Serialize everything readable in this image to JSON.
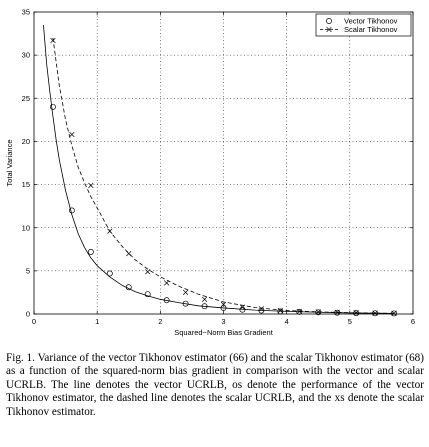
{
  "chart_data": {
    "type": "line",
    "title": "",
    "xlabel": "Squared−Norm Bias Gradient",
    "ylabel": "Total Variance",
    "xlim": [
      0,
      6
    ],
    "ylim": [
      0,
      35
    ],
    "xticks": [
      "0",
      "1",
      "2",
      "3",
      "4",
      "5",
      "6"
    ],
    "yticks": [
      "0",
      "5",
      "10",
      "15",
      "20",
      "25",
      "30",
      "35"
    ],
    "grid": "dotted",
    "legend_position": "top-right",
    "series": [
      {
        "name": "Vector Tikhonov",
        "marker": "circle",
        "line": "solid",
        "curve_x": [
          0.15,
          0.2,
          0.25,
          0.3,
          0.35,
          0.4,
          0.5,
          0.6,
          0.7,
          0.8,
          0.9,
          1.0,
          1.2,
          1.4,
          1.6,
          1.8,
          2.0,
          2.3,
          2.6,
          3.0,
          3.5,
          4.0,
          4.5,
          5.0,
          5.5,
          5.7
        ],
        "curve_y": [
          33.5,
          29.0,
          25.8,
          22.9,
          20.2,
          17.9,
          14.3,
          11.5,
          9.3,
          7.7,
          6.5,
          5.6,
          4.3,
          3.3,
          2.6,
          2.1,
          1.7,
          1.3,
          0.95,
          0.7,
          0.45,
          0.3,
          0.2,
          0.12,
          0.08,
          0.07
        ],
        "marker_x": [
          0.3,
          0.6,
          0.9,
          1.2,
          1.5,
          1.8,
          2.1,
          2.4,
          2.7,
          3.0,
          3.3,
          3.6,
          3.9,
          4.2,
          4.5,
          4.8,
          5.1,
          5.4,
          5.7
        ],
        "marker_y": [
          24.0,
          12.0,
          7.2,
          4.7,
          3.1,
          2.3,
          1.6,
          1.2,
          0.9,
          0.7,
          0.5,
          0.4,
          0.3,
          0.25,
          0.2,
          0.15,
          0.1,
          0.08,
          0.07
        ]
      },
      {
        "name": "Scalar Tikhonov",
        "marker": "x",
        "line": "dashed",
        "curve_x": [
          0.3,
          0.4,
          0.5,
          0.6,
          0.7,
          0.8,
          0.9,
          1.0,
          1.2,
          1.4,
          1.6,
          1.8,
          2.0,
          2.3,
          2.6,
          3.0,
          3.5,
          4.0,
          4.5,
          5.0,
          5.5,
          5.7
        ],
        "curve_y": [
          32.0,
          26.5,
          22.5,
          19.5,
          17.0,
          15.2,
          13.6,
          12.3,
          9.6,
          7.8,
          6.3,
          5.2,
          4.3,
          3.2,
          2.3,
          1.4,
          0.75,
          0.4,
          0.25,
          0.15,
          0.1,
          0.08
        ],
        "marker_x": [
          0.3,
          0.6,
          0.9,
          1.2,
          1.5,
          1.8,
          2.1,
          2.4,
          2.7,
          3.0,
          3.3,
          3.6,
          3.9,
          4.2,
          4.5,
          4.8,
          5.1,
          5.4,
          5.7
        ],
        "marker_y": [
          31.7,
          20.8,
          14.9,
          9.6,
          7.0,
          4.9,
          3.6,
          2.5,
          1.7,
          1.1,
          0.8,
          0.6,
          0.4,
          0.3,
          0.25,
          0.2,
          0.15,
          0.1,
          0.08
        ]
      }
    ]
  },
  "caption": "Fig. 1.   Variance of the vector Tikhonov estimator (66) and the scalar Tikhonov estimator (68) as a function of the squared-norm bias gradient in comparison with the vector and scalar UCRLB. The line denotes the vector UCRLB, os denote the performance of the vector Tikhonov estimator, the dashed line denotes the scalar UCRLB, and the xs denote the scalar Tikhonov estimator."
}
